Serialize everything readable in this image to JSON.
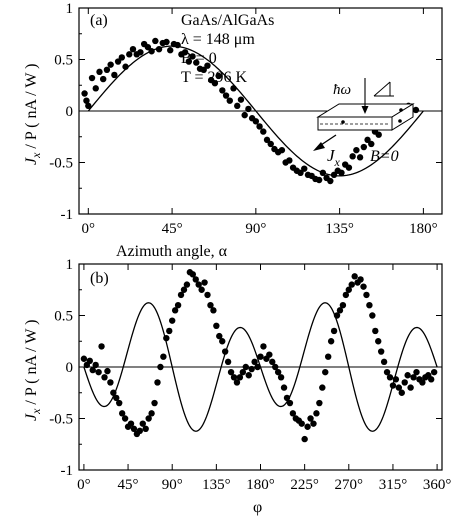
{
  "chart_data": [
    {
      "type": "scatter",
      "panel_label": "(a)",
      "xlabel": "Azimuth angle, α",
      "ylabel_main": "J",
      "ylabel_sub": "x",
      "ylabel_rest": " / P  ( nA / W )",
      "xlim": [
        -5,
        190
      ],
      "ylim": [
        -1,
        1
      ],
      "xticks": [
        0,
        45,
        90,
        135,
        180
      ],
      "xtick_labels": [
        "0°",
        "45°",
        "90°",
        "135°",
        "180°"
      ],
      "yticks": [
        -1,
        -0.5,
        0,
        0.5,
        1
      ],
      "ytick_labels": [
        "-1",
        "-0.5",
        "0",
        "0.5",
        "1"
      ],
      "info_lines": [
        "GaAs/AlGaAs",
        "λ = 148 μm",
        "B = 0",
        "T = 296 K"
      ],
      "inset": {
        "hw": "ħω",
        "jx_main": "J",
        "jx_sub": "x",
        "b_label": "B=0"
      },
      "fit": {
        "type": "sine",
        "amplitude": 0.63,
        "period_deg": 180,
        "phase_deg": 0
      },
      "points": [
        [
          -2,
          0.17
        ],
        [
          -1,
          0.1
        ],
        [
          0,
          0.05
        ],
        [
          2,
          0.32
        ],
        [
          4,
          0.22
        ],
        [
          6,
          0.38
        ],
        [
          8,
          0.31
        ],
        [
          10,
          0.4
        ],
        [
          12,
          0.45
        ],
        [
          14,
          0.35
        ],
        [
          16,
          0.48
        ],
        [
          18,
          0.52
        ],
        [
          20,
          0.43
        ],
        [
          22,
          0.55
        ],
        [
          24,
          0.6
        ],
        [
          26,
          0.55
        ],
        [
          28,
          0.57
        ],
        [
          30,
          0.65
        ],
        [
          32,
          0.62
        ],
        [
          34,
          0.58
        ],
        [
          36,
          0.68
        ],
        [
          38,
          0.6
        ],
        [
          40,
          0.66
        ],
        [
          42,
          0.67
        ],
        [
          44,
          0.59
        ],
        [
          46,
          0.65
        ],
        [
          48,
          0.64
        ],
        [
          50,
          0.55
        ],
        [
          52,
          0.57
        ],
        [
          54,
          0.48
        ],
        [
          56,
          0.53
        ],
        [
          58,
          0.47
        ],
        [
          60,
          0.41
        ],
        [
          62,
          0.4
        ],
        [
          64,
          0.44
        ],
        [
          66,
          0.3
        ],
        [
          68,
          0.27
        ],
        [
          70,
          0.34
        ],
        [
          72,
          0.2
        ],
        [
          74,
          0.15
        ],
        [
          76,
          0.1
        ],
        [
          78,
          0.22
        ],
        [
          80,
          0.05
        ],
        [
          82,
          0.11
        ],
        [
          84,
          -0.04
        ],
        [
          86,
          0.02
        ],
        [
          88,
          -0.07
        ],
        [
          90,
          -0.1
        ],
        [
          92,
          -0.15
        ],
        [
          94,
          -0.2
        ],
        [
          96,
          -0.28
        ],
        [
          98,
          -0.32
        ],
        [
          100,
          -0.37
        ],
        [
          102,
          -0.4
        ],
        [
          104,
          -0.38
        ],
        [
          106,
          -0.5
        ],
        [
          108,
          -0.48
        ],
        [
          110,
          -0.55
        ],
        [
          112,
          -0.58
        ],
        [
          114,
          -0.6
        ],
        [
          116,
          -0.56
        ],
        [
          118,
          -0.62
        ],
        [
          120,
          -0.63
        ],
        [
          122,
          -0.66
        ],
        [
          124,
          -0.67
        ],
        [
          126,
          -0.6
        ],
        [
          128,
          -0.65
        ],
        [
          130,
          -0.68
        ],
        [
          132,
          -0.62
        ],
        [
          134,
          -0.58
        ],
        [
          136,
          -0.6
        ],
        [
          138,
          -0.52
        ],
        [
          140,
          -0.55
        ],
        [
          142,
          -0.44
        ],
        [
          144,
          -0.38
        ],
        [
          146,
          -0.45
        ],
        [
          148,
          -0.35
        ],
        [
          150,
          -0.28
        ],
        [
          152,
          -0.32
        ],
        [
          154,
          -0.2
        ],
        [
          156,
          -0.23
        ],
        [
          158,
          -0.14
        ],
        [
          160,
          -0.12
        ],
        [
          164,
          0.02
        ],
        [
          168,
          -0.04
        ],
        [
          172,
          0.05
        ],
        [
          176,
          0.01
        ]
      ]
    },
    {
      "type": "scatter",
      "panel_label": "(b)",
      "xlabel": "φ",
      "ylabel_main": "J",
      "ylabel_sub": "x",
      "ylabel_rest": " / P  ( nA / W )",
      "xlim": [
        -5,
        365
      ],
      "ylim": [
        -1,
        1
      ],
      "xticks": [
        0,
        45,
        90,
        135,
        180,
        225,
        270,
        315,
        360
      ],
      "xtick_labels": [
        "0°",
        "45°",
        "90°",
        "135°",
        "180°",
        "225°",
        "270°",
        "315°",
        "360°"
      ],
      "yticks": [
        -1,
        -0.5,
        0,
        0.5,
        1
      ],
      "ytick_labels": [
        "-1",
        "-0.5",
        "0",
        "0.5",
        "1"
      ],
      "fit": {
        "type": "sum_of_sines",
        "a1": 0.17,
        "a2": -0.5
      },
      "points": [
        [
          0,
          0.08
        ],
        [
          3,
          0.02
        ],
        [
          6,
          0.06
        ],
        [
          9,
          -0.03
        ],
        [
          12,
          0.02
        ],
        [
          15,
          -0.05
        ],
        [
          18,
          0.2
        ],
        [
          21,
          -0.1
        ],
        [
          24,
          -0.04
        ],
        [
          27,
          -0.15
        ],
        [
          30,
          -0.25
        ],
        [
          33,
          -0.3
        ],
        [
          36,
          -0.35
        ],
        [
          39,
          -0.45
        ],
        [
          42,
          -0.5
        ],
        [
          45,
          -0.58
        ],
        [
          48,
          -0.55
        ],
        [
          51,
          -0.6
        ],
        [
          54,
          -0.65
        ],
        [
          57,
          -0.62
        ],
        [
          60,
          -0.55
        ],
        [
          63,
          -0.6
        ],
        [
          66,
          -0.5
        ],
        [
          69,
          -0.45
        ],
        [
          72,
          -0.35
        ],
        [
          75,
          -0.15
        ],
        [
          78,
          0.0
        ],
        [
          81,
          0.1
        ],
        [
          84,
          0.28
        ],
        [
          87,
          0.35
        ],
        [
          90,
          0.45
        ],
        [
          93,
          0.55
        ],
        [
          96,
          0.6
        ],
        [
          99,
          0.7
        ],
        [
          102,
          0.75
        ],
        [
          105,
          0.8
        ],
        [
          108,
          0.92
        ],
        [
          111,
          0.9
        ],
        [
          114,
          0.85
        ],
        [
          117,
          0.8
        ],
        [
          120,
          0.75
        ],
        [
          123,
          0.82
        ],
        [
          126,
          0.7
        ],
        [
          129,
          0.6
        ],
        [
          132,
          0.55
        ],
        [
          135,
          0.4
        ],
        [
          138,
          0.3
        ],
        [
          141,
          0.25
        ],
        [
          144,
          0.15
        ],
        [
          147,
          0.05
        ],
        [
          150,
          -0.05
        ],
        [
          153,
          -0.1
        ],
        [
          156,
          -0.15
        ],
        [
          159,
          -0.1
        ],
        [
          162,
          -0.05
        ],
        [
          165,
          0.0
        ],
        [
          168,
          -0.08
        ],
        [
          171,
          -0.02
        ],
        [
          174,
          0.05
        ],
        [
          177,
          0.0
        ],
        [
          180,
          0.1
        ],
        [
          183,
          0.2
        ],
        [
          186,
          0.08
        ],
        [
          189,
          0.12
        ],
        [
          192,
          0.05
        ],
        [
          195,
          0.0
        ],
        [
          198,
          -0.05
        ],
        [
          201,
          -0.1
        ],
        [
          204,
          -0.2
        ],
        [
          207,
          -0.3
        ],
        [
          210,
          -0.35
        ],
        [
          213,
          -0.45
        ],
        [
          216,
          -0.5
        ],
        [
          219,
          -0.52
        ],
        [
          222,
          -0.55
        ],
        [
          225,
          -0.7
        ],
        [
          228,
          -0.58
        ],
        [
          231,
          -0.5
        ],
        [
          234,
          -0.55
        ],
        [
          237,
          -0.45
        ],
        [
          240,
          -0.35
        ],
        [
          243,
          -0.2
        ],
        [
          246,
          -0.05
        ],
        [
          249,
          0.1
        ],
        [
          252,
          0.25
        ],
        [
          255,
          0.35
        ],
        [
          258,
          0.5
        ],
        [
          261,
          0.55
        ],
        [
          264,
          0.6
        ],
        [
          267,
          0.7
        ],
        [
          270,
          0.75
        ],
        [
          273,
          0.8
        ],
        [
          276,
          0.88
        ],
        [
          279,
          0.82
        ],
        [
          282,
          0.85
        ],
        [
          285,
          0.78
        ],
        [
          288,
          0.7
        ],
        [
          291,
          0.6
        ],
        [
          294,
          0.5
        ],
        [
          297,
          0.35
        ],
        [
          300,
          0.25
        ],
        [
          303,
          0.15
        ],
        [
          306,
          0.05
        ],
        [
          309,
          -0.05
        ],
        [
          312,
          -0.1
        ],
        [
          315,
          -0.18
        ],
        [
          318,
          -0.12
        ],
        [
          321,
          -0.2
        ],
        [
          324,
          -0.25
        ],
        [
          327,
          -0.15
        ],
        [
          330,
          -0.08
        ],
        [
          333,
          -0.2
        ],
        [
          336,
          -0.1
        ],
        [
          339,
          -0.05
        ],
        [
          342,
          -0.12
        ],
        [
          345,
          -0.15
        ],
        [
          348,
          -0.1
        ],
        [
          351,
          -0.08
        ],
        [
          354,
          -0.12
        ],
        [
          357,
          -0.05
        ]
      ]
    }
  ]
}
